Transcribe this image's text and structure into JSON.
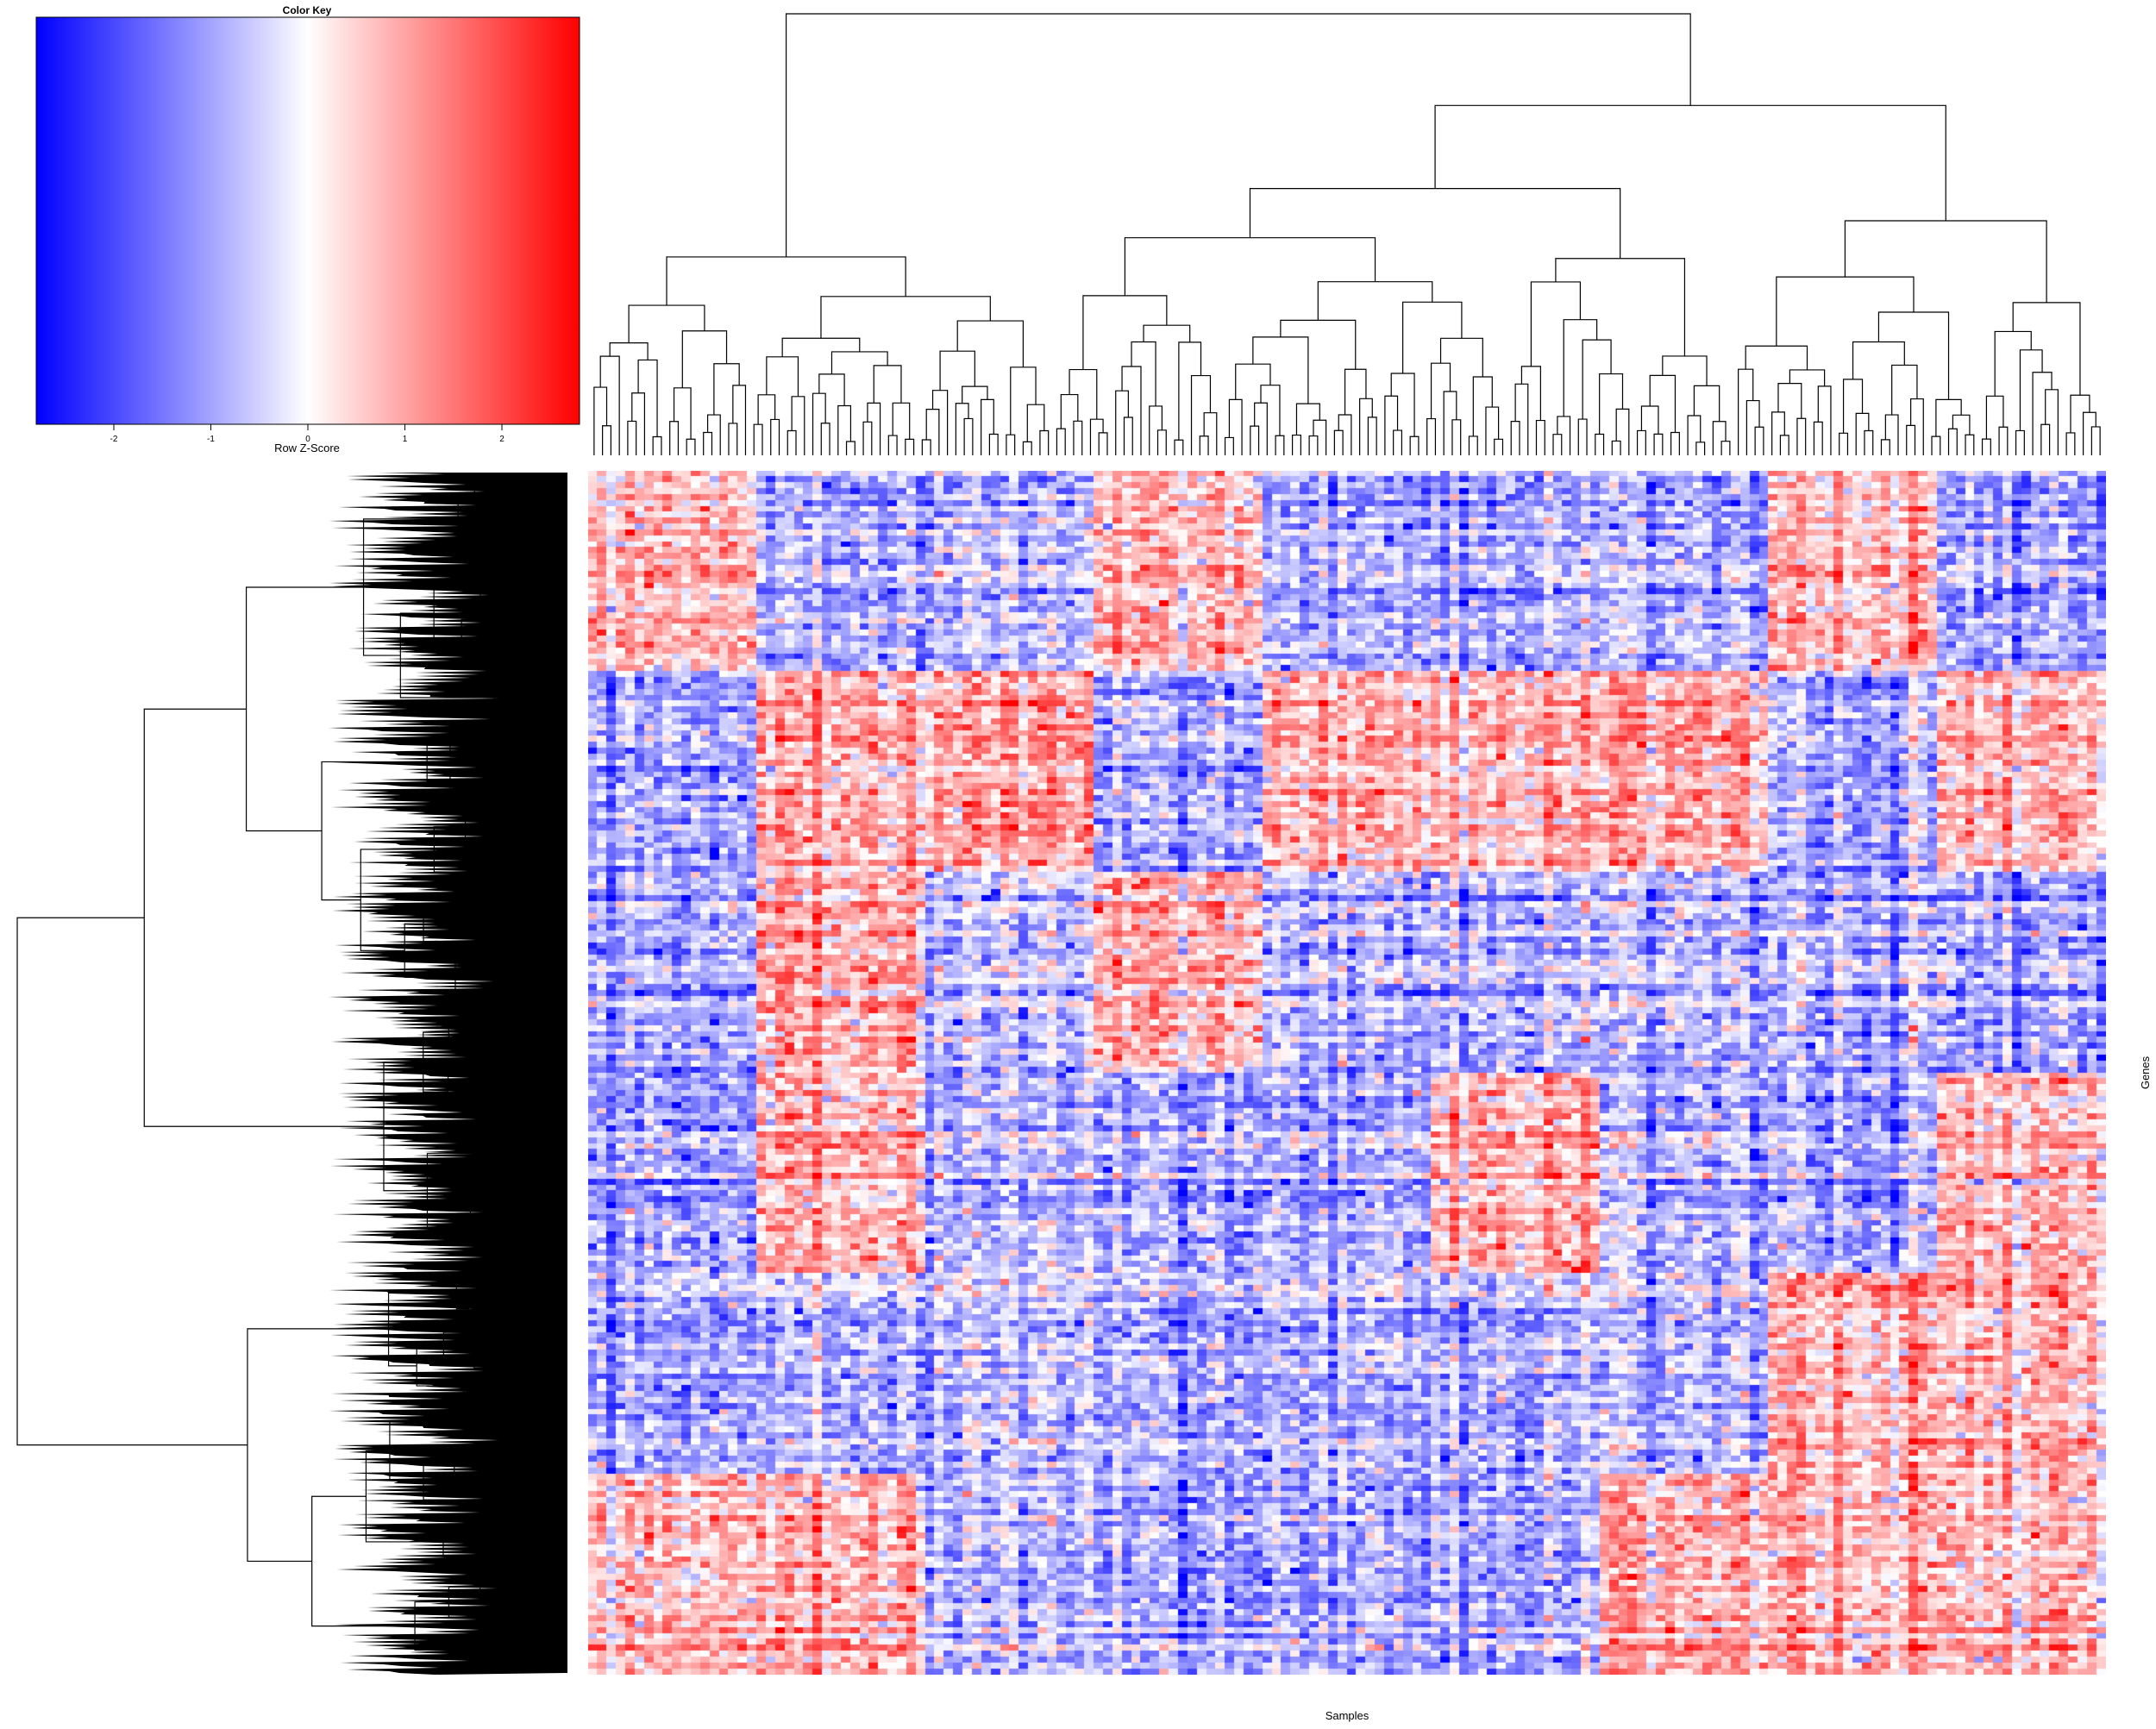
{
  "chart_data": {
    "type": "heatmap",
    "xlabel": "Samples",
    "ylabel": "Genes",
    "row_dendrogram": true,
    "column_dendrogram": true,
    "color_key": {
      "title": "Color Key",
      "label": "Row Z-Score",
      "ticks": [
        -2,
        -1,
        0,
        1,
        2
      ],
      "range": [
        -2.8,
        2.8
      ],
      "colors": {
        "low": "#0000ff",
        "mid": "#ffffff",
        "high": "#ff0000"
      }
    },
    "column_clusters": [
      {
        "pattern": [
          "pos",
          "neg",
          "neg",
          "neg",
          "neg",
          "pos"
        ]
      },
      {
        "pattern": [
          "neg",
          "pos",
          "pos",
          "pos",
          "neg",
          "pos"
        ]
      },
      {
        "pattern": [
          "neg",
          "pos",
          "neg",
          "neg",
          "neg",
          "neg"
        ]
      },
      {
        "pattern": [
          "pos",
          "neg",
          "pos",
          "neg",
          "neg",
          "neg"
        ]
      },
      {
        "pattern": [
          "neg",
          "pos",
          "neg",
          "neg",
          "neg",
          "neg"
        ]
      },
      {
        "pattern": [
          "neg",
          "pos",
          "neg",
          "pos",
          "neg",
          "neg"
        ]
      },
      {
        "pattern": [
          "neg",
          "pos",
          "neg",
          "neg",
          "neg",
          "pos"
        ]
      },
      {
        "pattern": [
          "pos",
          "neg",
          "neg",
          "neg",
          "pos",
          "pos"
        ]
      },
      {
        "pattern": [
          "neg",
          "pos",
          "neg",
          "pos",
          "pos",
          "pos"
        ]
      }
    ],
    "row_clusters": 6
  }
}
